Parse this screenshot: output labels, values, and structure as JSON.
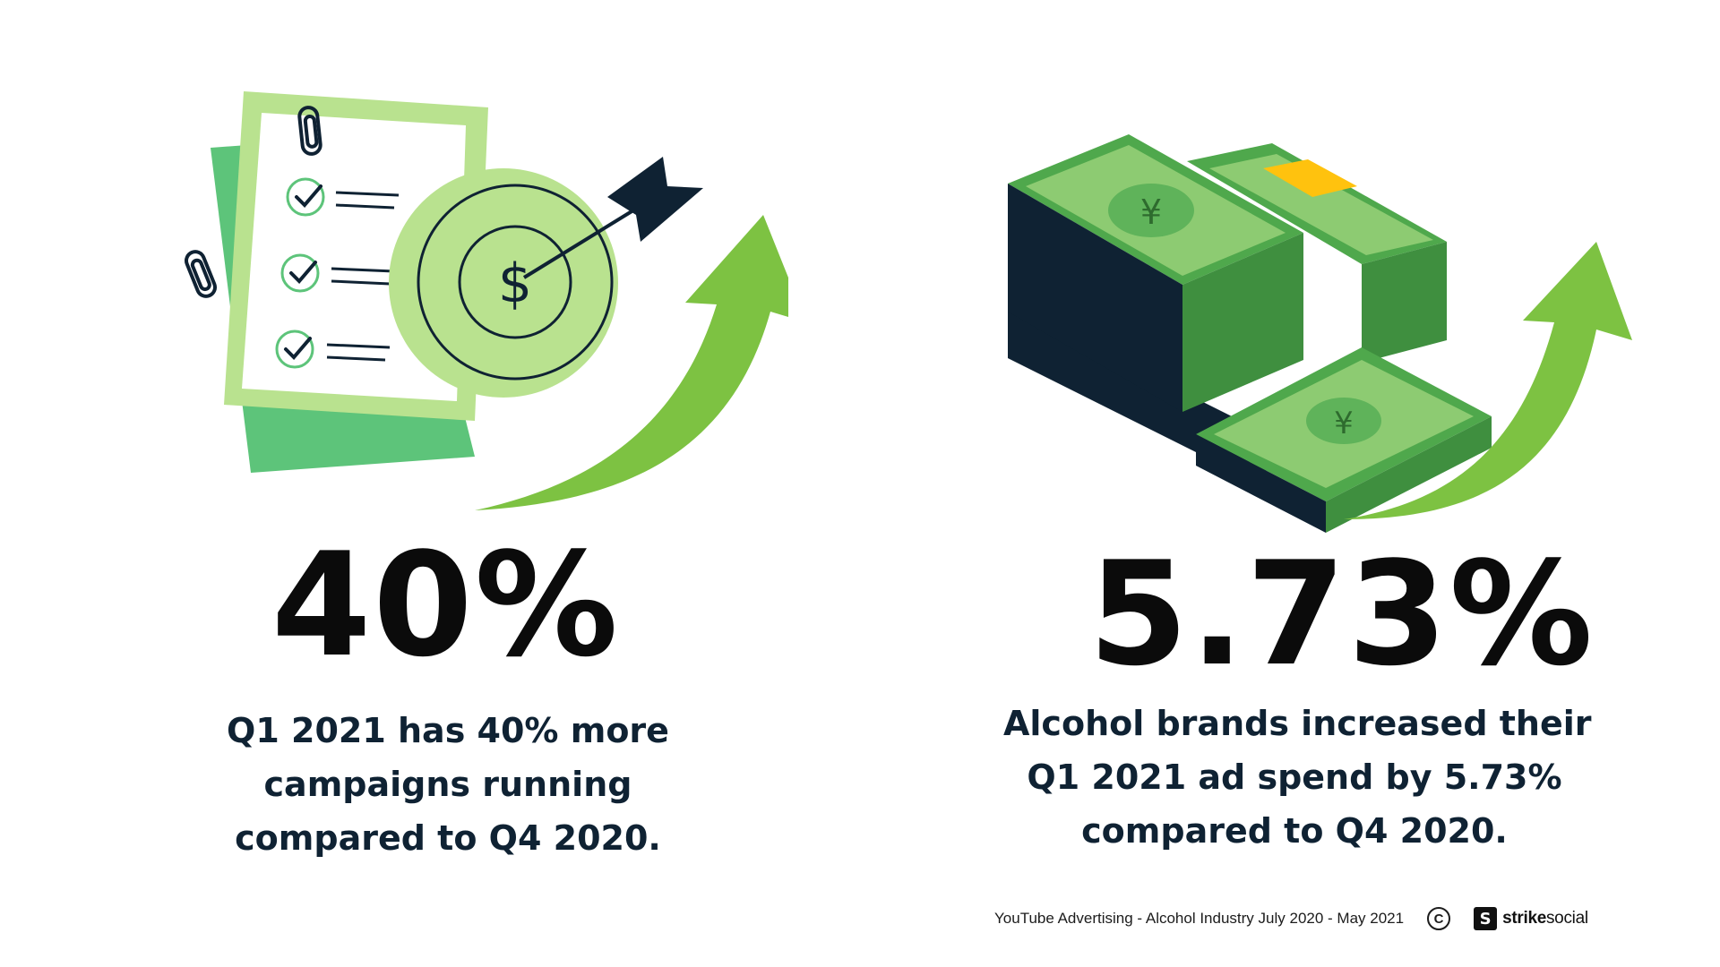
{
  "stats": {
    "left": {
      "value": "40%",
      "description_lines": [
        "Q1 2021 has 40% more",
        "campaigns running",
        "compared to Q4 2020."
      ]
    },
    "right": {
      "value": "5.73%",
      "description_lines": [
        "Alcohol brands increased their",
        "Q1 2021 ad spend by 5.73%",
        "compared to Q4 2020."
      ]
    }
  },
  "footer": {
    "source": "YouTube Advertising - Alcohol Industry July 2020 - May 2021",
    "copyright_symbol": "C",
    "brand_mark": "S",
    "brand_strong": "strike",
    "brand_light": "social"
  },
  "icons": {
    "left_illustration": "checklist-target-icon",
    "right_illustration": "money-stacks-icon",
    "arrow": "trend-up-arrow-icon"
  },
  "colors": {
    "accent_green": "#7dc242",
    "light_green": "#b9e28f",
    "mid_green": "#5dc47a",
    "money_green": "#4fa84c",
    "navy": "#0f2233",
    "gold": "#ffc20e"
  }
}
